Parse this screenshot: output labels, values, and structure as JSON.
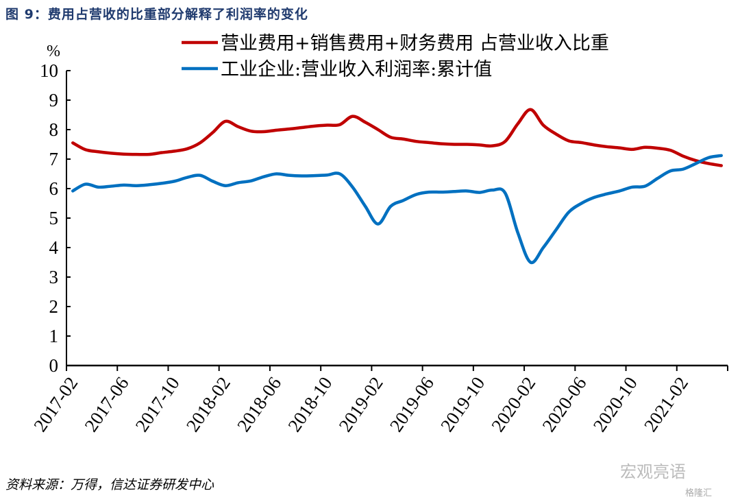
{
  "title": "图 9：费用占营收的比重部分解释了利润率的变化",
  "source": "资料来源：万得，信达证券研发中心",
  "watermark": "宏观亮语",
  "watermark2": "格隆汇",
  "chart_data": {
    "type": "line",
    "title": "",
    "ylabel": "%",
    "ylim": [
      0,
      10
    ],
    "yticks": [
      0,
      1,
      2,
      3,
      4,
      5,
      6,
      7,
      8,
      9,
      10
    ],
    "xlim": [
      "2017-02",
      "2021-06"
    ],
    "xtick_labels": [
      "2017-02",
      "2017-06",
      "2017-10",
      "2018-02",
      "2018-06",
      "2018-10",
      "2019-02",
      "2019-06",
      "2019-10",
      "2020-02",
      "2020-06",
      "2020-10",
      "2021-02"
    ],
    "grid": false,
    "legend_position": "top",
    "x": [
      "2017-02",
      "2017-03",
      "2017-04",
      "2017-05",
      "2017-06",
      "2017-07",
      "2017-08",
      "2017-09",
      "2017-10",
      "2017-11",
      "2017-12",
      "2018-01",
      "2018-02",
      "2018-03",
      "2018-04",
      "2018-05",
      "2018-06",
      "2018-07",
      "2018-08",
      "2018-09",
      "2018-10",
      "2018-11",
      "2018-12",
      "2019-01",
      "2019-02",
      "2019-03",
      "2019-04",
      "2019-05",
      "2019-06",
      "2019-07",
      "2019-08",
      "2019-09",
      "2019-10",
      "2019-11",
      "2019-12",
      "2020-01",
      "2020-02",
      "2020-03",
      "2020-04",
      "2020-05",
      "2020-06",
      "2020-07",
      "2020-08",
      "2020-09",
      "2020-10",
      "2020-11",
      "2020-12",
      "2021-01",
      "2021-02",
      "2021-03",
      "2021-04",
      "2021-05"
    ],
    "series": [
      {
        "name": "营业费用+销售费用+财务费用 占营业收入比重",
        "color": "#C00000",
        "values": [
          7.55,
          7.32,
          7.25,
          7.2,
          7.17,
          7.16,
          7.16,
          7.22,
          7.27,
          7.35,
          7.55,
          7.9,
          8.28,
          8.1,
          7.95,
          7.93,
          7.98,
          8.02,
          8.07,
          8.12,
          8.15,
          8.17,
          8.45,
          8.25,
          8.0,
          7.74,
          7.68,
          7.6,
          7.56,
          7.52,
          7.5,
          7.5,
          7.48,
          7.45,
          7.6,
          8.2,
          8.68,
          8.15,
          7.85,
          7.62,
          7.56,
          7.48,
          7.42,
          7.38,
          7.33,
          7.4,
          7.37,
          7.3,
          7.1,
          6.95,
          6.85,
          6.78
        ]
      },
      {
        "name": "工业企业:营业收入利润率:累计值",
        "color": "#0070C0",
        "values": [
          5.92,
          6.15,
          6.05,
          6.08,
          6.12,
          6.1,
          6.13,
          6.18,
          6.25,
          6.38,
          6.45,
          6.25,
          6.1,
          6.2,
          6.26,
          6.4,
          6.5,
          6.45,
          6.43,
          6.44,
          6.46,
          6.5,
          6.05,
          5.4,
          4.8,
          5.4,
          5.6,
          5.8,
          5.88,
          5.88,
          5.9,
          5.92,
          5.87,
          5.95,
          5.85,
          4.5,
          3.5,
          4.0,
          4.6,
          5.2,
          5.5,
          5.7,
          5.82,
          5.92,
          6.05,
          6.08,
          6.35,
          6.6,
          6.66,
          6.85,
          7.05,
          7.12
        ]
      }
    ]
  }
}
